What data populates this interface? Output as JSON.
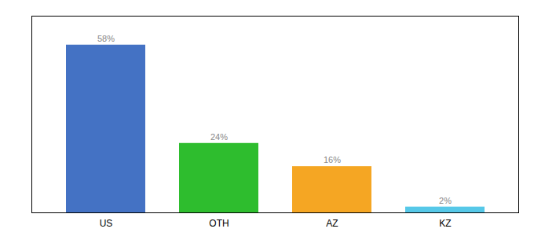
{
  "chart_data": {
    "type": "bar",
    "categories": [
      "US",
      "OTH",
      "AZ",
      "KZ"
    ],
    "values": [
      58,
      24,
      16,
      2
    ],
    "colors": [
      "#4472c4",
      "#2ebd2e",
      "#f5a623",
      "#56c8e8"
    ],
    "ylim": [
      0,
      68
    ],
    "data_labels": true,
    "value_labels": [
      "58%",
      "24%",
      "16%",
      "2%"
    ],
    "tick_labels": "x"
  }
}
